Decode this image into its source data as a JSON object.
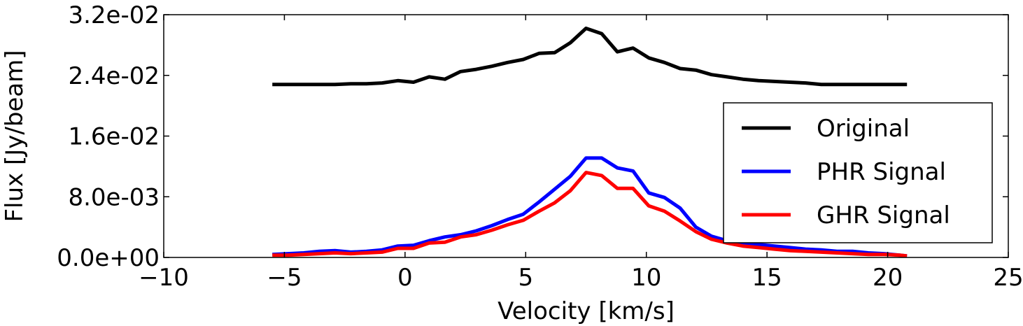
{
  "chart_data": {
    "type": "line",
    "title": "",
    "xlabel": "Velocity [km/s]",
    "ylabel": "Flux [Jy/beam]",
    "xlim": [
      -10,
      25
    ],
    "ylim": [
      0,
      0.032
    ],
    "xticks": [
      -10,
      -5,
      0,
      5,
      10,
      15,
      20,
      25
    ],
    "xtick_labels": [
      "−10",
      "−5",
      "0",
      "5",
      "10",
      "15",
      "20",
      "25"
    ],
    "yticks": [
      0,
      0.008,
      0.016,
      0.024,
      0.032
    ],
    "ytick_labels": [
      "0.0e+00",
      "8.0e-03",
      "1.6e-02",
      "2.4e-02",
      "3.2e-02"
    ],
    "grid": false,
    "legend_position": "center-right",
    "x": [
      -5.5,
      -4.85,
      -4.2,
      -3.55,
      -2.9,
      -2.25,
      -1.6,
      -0.95,
      -0.3,
      0.35,
      1.0,
      1.65,
      2.3,
      2.95,
      3.6,
      4.25,
      4.9,
      5.55,
      6.2,
      6.85,
      7.5,
      8.15,
      8.8,
      9.45,
      10.1,
      10.75,
      11.4,
      12.05,
      12.7,
      13.35,
      14.0,
      14.65,
      15.3,
      15.95,
      16.6,
      17.25,
      17.9,
      18.55,
      19.2,
      19.85,
      20.5,
      20.8
    ],
    "series": [
      {
        "name": "Original",
        "color": "#000000",
        "values": [
          0.0228,
          0.0228,
          0.0228,
          0.0228,
          0.0228,
          0.0229,
          0.0229,
          0.023,
          0.0233,
          0.0231,
          0.0238,
          0.0235,
          0.0245,
          0.0248,
          0.0252,
          0.0257,
          0.0261,
          0.0269,
          0.027,
          0.0283,
          0.0302,
          0.0295,
          0.0271,
          0.0276,
          0.0263,
          0.0257,
          0.0249,
          0.0247,
          0.0241,
          0.0238,
          0.0235,
          0.0233,
          0.0232,
          0.0231,
          0.023,
          0.0228,
          0.0228,
          0.0228,
          0.0228,
          0.0228,
          0.0228,
          0.0228
        ]
      },
      {
        "name": "PHR Signal",
        "color": "#0000ff",
        "values": [
          0.0004,
          0.0005,
          0.0006,
          0.0008,
          0.0009,
          0.0007,
          0.0008,
          0.001,
          0.0015,
          0.0016,
          0.0022,
          0.0027,
          0.003,
          0.0035,
          0.0042,
          0.005,
          0.0057,
          0.0073,
          0.009,
          0.0107,
          0.0131,
          0.0131,
          0.0118,
          0.0114,
          0.0085,
          0.0079,
          0.0065,
          0.004,
          0.0028,
          0.0022,
          0.0019,
          0.0017,
          0.0015,
          0.0013,
          0.0011,
          0.001,
          0.0008,
          0.0008,
          0.0006,
          0.0005,
          0.0003,
          0.0002
        ]
      },
      {
        "name": "GHR Signal",
        "color": "#ff0000",
        "values": [
          0.0003,
          0.0003,
          0.0004,
          0.0005,
          0.0006,
          0.0005,
          0.0006,
          0.0007,
          0.0012,
          0.0012,
          0.0019,
          0.002,
          0.0027,
          0.003,
          0.0036,
          0.0043,
          0.0049,
          0.0061,
          0.0072,
          0.0088,
          0.0112,
          0.0108,
          0.0091,
          0.0091,
          0.0068,
          0.0061,
          0.0048,
          0.0034,
          0.0024,
          0.0019,
          0.0015,
          0.0013,
          0.0011,
          0.0009,
          0.0008,
          0.0007,
          0.0006,
          0.0005,
          0.0004,
          0.0004,
          0.0003,
          0.0002
        ]
      }
    ]
  }
}
